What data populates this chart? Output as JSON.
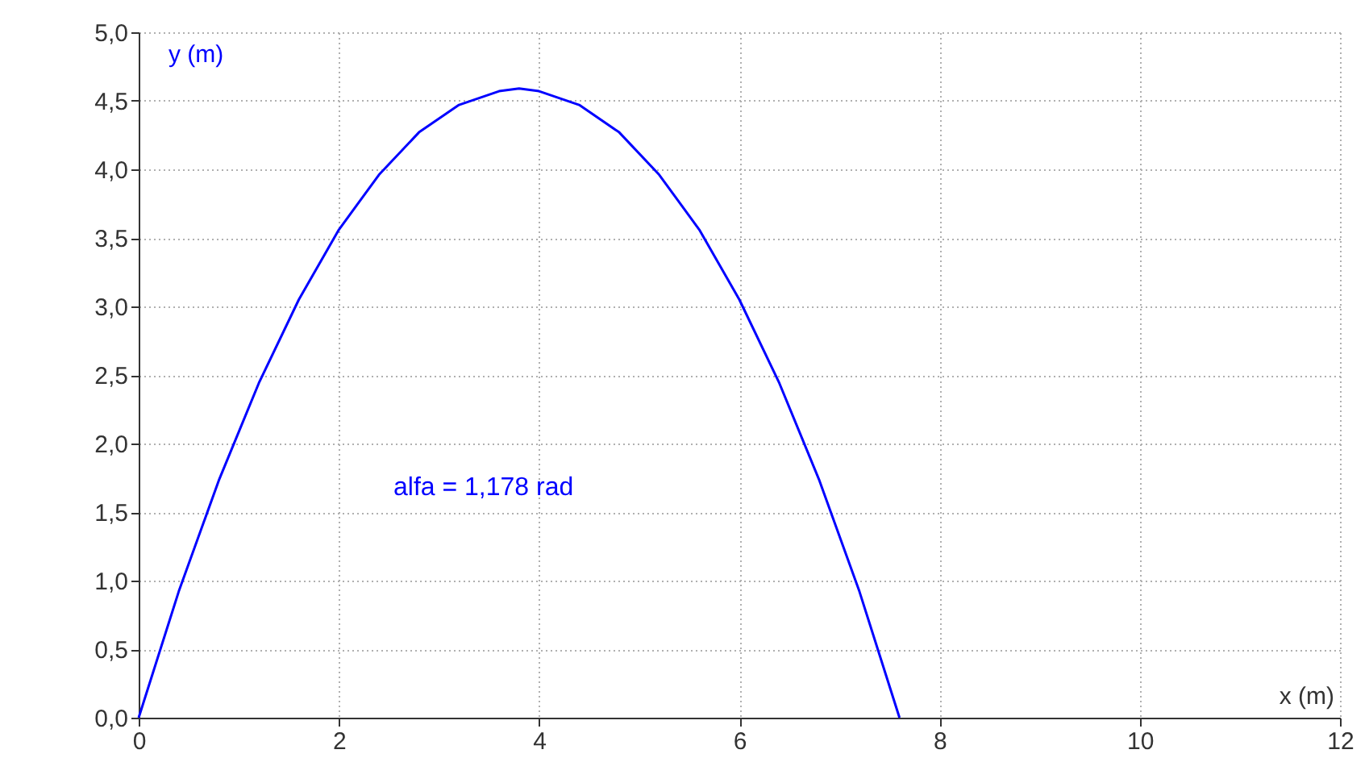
{
  "chart_data": {
    "type": "line",
    "xlabel": "x (m)",
    "ylabel": "y (m)",
    "x": [
      0,
      0.4,
      0.8,
      1.2,
      1.6,
      2.0,
      2.4,
      2.8,
      3.2,
      3.6,
      3.8,
      4.0,
      4.4,
      4.8,
      5.2,
      5.6,
      6.0,
      6.4,
      6.8,
      7.2,
      7.6
    ],
    "series": [
      {
        "color": "#0000ff",
        "values": [
          0,
          0.92,
          1.73,
          2.44,
          3.05,
          3.56,
          3.96,
          4.27,
          4.47,
          4.57,
          4.59,
          4.57,
          4.47,
          4.27,
          3.96,
          3.56,
          3.05,
          2.44,
          1.73,
          0.92,
          0
        ]
      }
    ],
    "xlim": [
      0,
      12
    ],
    "xticks": [
      0,
      2,
      4,
      6,
      8,
      10,
      12
    ],
    "ylim": [
      0,
      5
    ],
    "yticks": [
      {
        "value": 0,
        "label": "0,0"
      },
      {
        "value": 0.5,
        "label": "0,5"
      },
      {
        "value": 1,
        "label": "1,0"
      },
      {
        "value": 1.5,
        "label": "1,5"
      },
      {
        "value": 2,
        "label": "2,0"
      },
      {
        "value": 2.5,
        "label": "2,5"
      },
      {
        "value": 3,
        "label": "3,0"
      },
      {
        "value": 3.5,
        "label": "3,5"
      },
      {
        "value": 4,
        "label": "4,0"
      },
      {
        "value": 4.5,
        "label": "4,5"
      },
      {
        "value": 5,
        "label": "5,0"
      }
    ],
    "grid": true,
    "marker": "none",
    "line_style": "solid",
    "annotations": [
      "alfa = 1,178 rad"
    ]
  }
}
